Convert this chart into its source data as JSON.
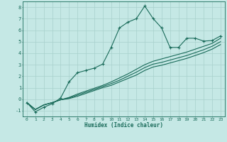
{
  "title": "",
  "xlabel": "Humidex (Indice chaleur)",
  "xlim": [
    -0.5,
    23.5
  ],
  "ylim": [
    -1.5,
    8.5
  ],
  "xticks": [
    0,
    1,
    2,
    3,
    4,
    5,
    6,
    7,
    8,
    9,
    10,
    11,
    12,
    13,
    14,
    15,
    16,
    17,
    18,
    19,
    20,
    21,
    22,
    23
  ],
  "yticks": [
    -1,
    0,
    1,
    2,
    3,
    4,
    5,
    6,
    7,
    8
  ],
  "bg_color": "#c5e8e5",
  "line_color": "#1a6b5a",
  "grid_color": "#a8d0cc",
  "line1_x": [
    0,
    1,
    2,
    3,
    4,
    5,
    6,
    7,
    8,
    9,
    10,
    11,
    12,
    13,
    14,
    15,
    16,
    17,
    18,
    19,
    20,
    21,
    22,
    23
  ],
  "line1_y": [
    -0.3,
    -1.1,
    -0.7,
    -0.4,
    0.1,
    1.5,
    2.3,
    2.5,
    2.7,
    3.05,
    4.5,
    6.2,
    6.7,
    7.0,
    8.1,
    7.0,
    6.2,
    4.5,
    4.5,
    5.3,
    5.3,
    5.05,
    5.1,
    5.5
  ],
  "line2_x": [
    0,
    1,
    2,
    3,
    4,
    5,
    6,
    7,
    8,
    9,
    10,
    11,
    12,
    13,
    14,
    15,
    16,
    17,
    18,
    19,
    20,
    21,
    22,
    23
  ],
  "line2_y": [
    -0.3,
    -0.9,
    -0.5,
    -0.3,
    -0.05,
    0.15,
    0.45,
    0.7,
    0.95,
    1.2,
    1.5,
    1.85,
    2.2,
    2.6,
    3.0,
    3.3,
    3.5,
    3.7,
    3.9,
    4.1,
    4.35,
    4.6,
    4.85,
    5.3
  ],
  "line3_x": [
    0,
    1,
    2,
    3,
    4,
    5,
    6,
    7,
    8,
    9,
    10,
    11,
    12,
    13,
    14,
    15,
    16,
    17,
    18,
    19,
    20,
    21,
    22,
    23
  ],
  "line3_y": [
    -0.3,
    -0.9,
    -0.5,
    -0.3,
    -0.05,
    0.1,
    0.35,
    0.6,
    0.85,
    1.1,
    1.35,
    1.65,
    2.0,
    2.35,
    2.75,
    3.05,
    3.2,
    3.4,
    3.6,
    3.8,
    4.05,
    4.3,
    4.6,
    5.0
  ],
  "line4_x": [
    0,
    1,
    2,
    3,
    4,
    5,
    6,
    7,
    8,
    9,
    10,
    11,
    12,
    13,
    14,
    15,
    16,
    17,
    18,
    19,
    20,
    21,
    22,
    23
  ],
  "line4_y": [
    -0.3,
    -0.9,
    -0.5,
    -0.3,
    -0.05,
    0.05,
    0.25,
    0.5,
    0.75,
    1.0,
    1.2,
    1.5,
    1.8,
    2.1,
    2.5,
    2.8,
    2.95,
    3.15,
    3.35,
    3.55,
    3.8,
    4.05,
    4.35,
    4.75
  ]
}
